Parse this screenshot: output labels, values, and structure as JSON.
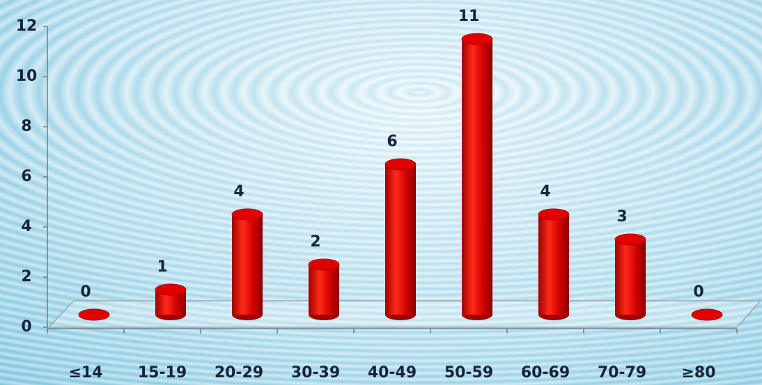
{
  "chart_data": {
    "type": "bar",
    "categories": [
      "≤14",
      "15-19",
      "20-29",
      "30-39",
      "40-49",
      "50-59",
      "60-69",
      "70-79",
      "≥80"
    ],
    "values": [
      0,
      1,
      4,
      2,
      6,
      11,
      4,
      3,
      0
    ],
    "color": "#e00000",
    "ylim": [
      0,
      12
    ],
    "yticks": [
      0,
      2,
      4,
      6,
      8,
      10,
      12
    ]
  }
}
